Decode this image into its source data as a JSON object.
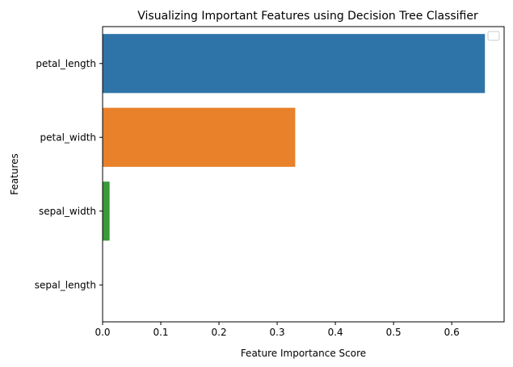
{
  "chart_data": {
    "type": "bar",
    "orientation": "horizontal",
    "title": "Visualizing Important Features using Decision Tree Classifier",
    "xlabel": "Feature Importance Score",
    "ylabel": "Features",
    "categories": [
      "petal_length",
      "petal_width",
      "sepal_width",
      "sepal_length"
    ],
    "values": [
      0.657,
      0.331,
      0.012,
      0.0
    ],
    "colors": [
      "#2f74a8",
      "#e8812a",
      "#3a9a3a",
      "#c03d3d"
    ],
    "xlim": [
      0,
      0.69
    ],
    "xticks": [
      0,
      0.1,
      0.2,
      0.3,
      0.4,
      0.5,
      0.6
    ],
    "xtick_labels": [
      "0.0",
      "0.1",
      "0.2",
      "0.3",
      "0.4",
      "0.5",
      "0.6"
    ],
    "grid": false,
    "legend": {
      "placement": "top-right",
      "entries": []
    }
  }
}
